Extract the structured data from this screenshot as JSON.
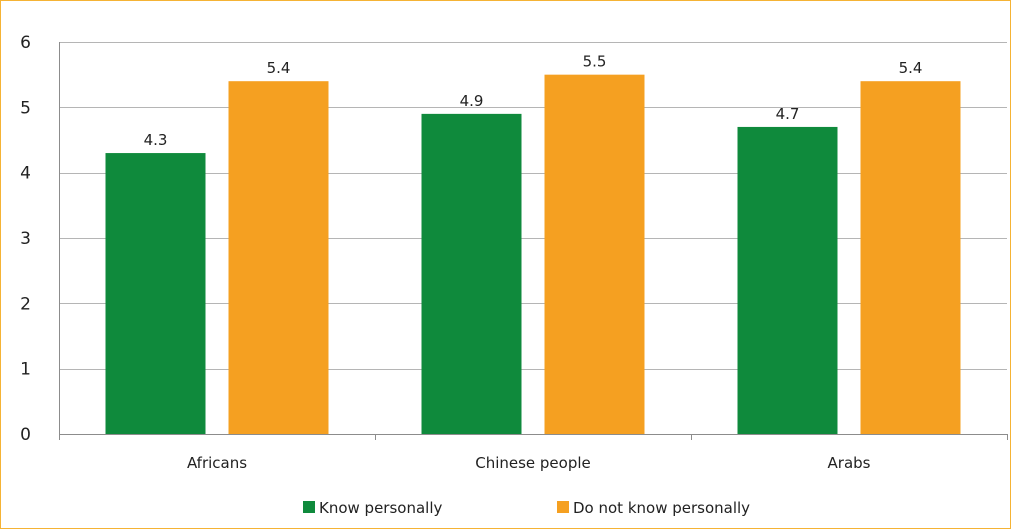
{
  "chart_data": {
    "type": "bar",
    "categories": [
      "Africans",
      "Chinese people",
      "Arabs"
    ],
    "series": [
      {
        "name": "Know personally",
        "values": [
          4.3,
          4.9,
          4.7
        ],
        "labels": [
          "4.3",
          "4.9",
          "4.7"
        ],
        "color": "#0f8a3c"
      },
      {
        "name": "Do not know personally",
        "values": [
          5.4,
          5.5,
          5.4
        ],
        "labels": [
          "5.4",
          "5.5",
          "5.4"
        ],
        "color": "#f5a021"
      }
    ],
    "ylim": [
      0,
      6
    ],
    "yticks": [
      "0",
      "1",
      "2",
      "3",
      "4",
      "5",
      "6"
    ],
    "grid": true,
    "legend": "bottom",
    "axis_color": "#8c8c8c",
    "grid_color": "#b5b5b5",
    "frame_color": "#f5b335"
  }
}
